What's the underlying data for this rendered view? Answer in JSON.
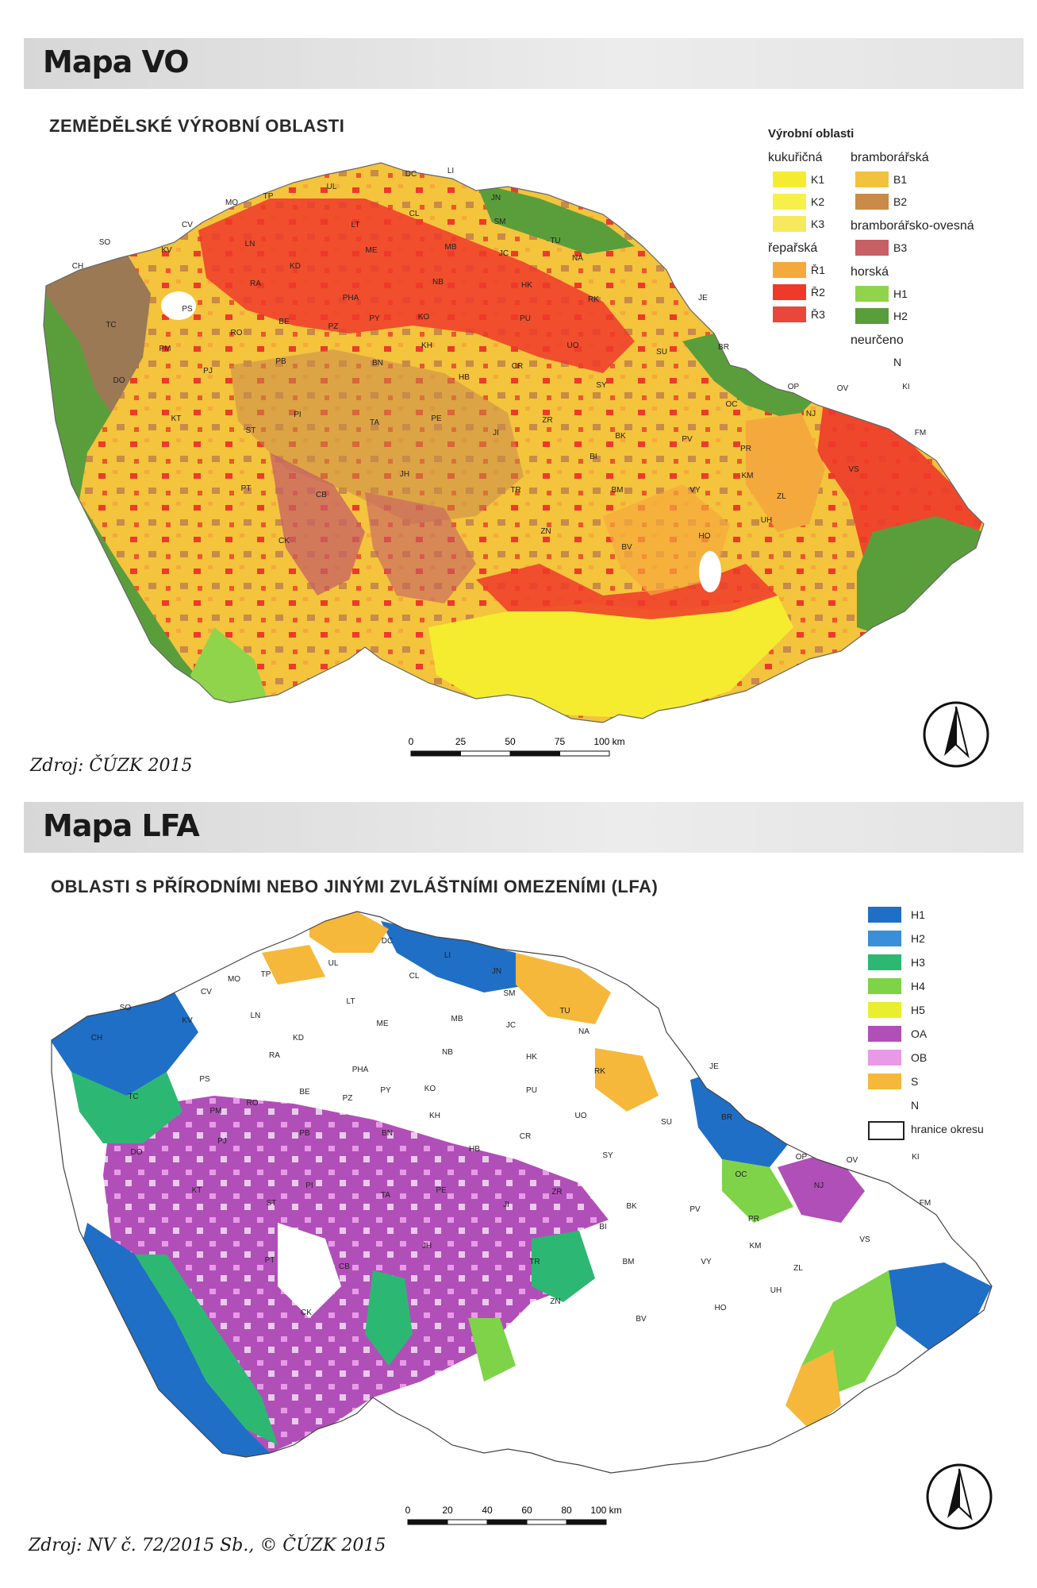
{
  "map_vo": {
    "header": "Mapa VO",
    "title": "ZEMĚDĚLSKÉ VÝROBNÍ OBLASTI",
    "source": "Zdroj: ČÚZK 2015",
    "legend": {
      "heading": "Výrobní oblasti",
      "groups": [
        {
          "name": "kukuřičná",
          "items": [
            {
              "code": "K1",
              "color": "#f5ec2f"
            },
            {
              "code": "K2",
              "color": "#f8f04a"
            },
            {
              "code": "K3",
              "color": "#f6ea5c"
            }
          ]
        },
        {
          "name": "řepařská",
          "items": [
            {
              "code": "Ř1",
              "color": "#f5a93c"
            },
            {
              "code": "Ř2",
              "color": "#ee3a2a"
            },
            {
              "code": "Ř3",
              "color": "#e9473a"
            }
          ]
        },
        {
          "name": "bramborářská",
          "items": [
            {
              "code": "B1",
              "color": "#f2c23e"
            },
            {
              "code": "B2",
              "color": "#c98a4a"
            }
          ]
        },
        {
          "name": "bramborářsko-ovesná",
          "items": [
            {
              "code": "B3",
              "color": "#c76064"
            }
          ]
        },
        {
          "name": "horská",
          "items": [
            {
              "code": "H1",
              "color": "#8fd44a"
            },
            {
              "code": "H2",
              "color": "#5a9e3c"
            }
          ]
        },
        {
          "name": "neurčeno",
          "items": [
            {
              "code": "N",
              "color": "#ffffff"
            }
          ]
        }
      ]
    },
    "scale": {
      "ticks": [
        "0",
        "25",
        "50",
        "75",
        "100 km"
      ]
    },
    "districts": [
      "DC",
      "LI",
      "UL",
      "TP",
      "CL",
      "JN",
      "MO",
      "SM",
      "SO",
      "CV",
      "LT",
      "TU",
      "KV",
      "LN",
      "ME",
      "MB",
      "JC",
      "NA",
      "CH",
      "KD",
      "RA",
      "NB",
      "HK",
      "PS",
      "PHA",
      "RK",
      "BE",
      "PY",
      "KO",
      "PU",
      "TC",
      "RO",
      "PZ",
      "KH",
      "UO",
      "PM",
      "PB",
      "BN",
      "CR",
      "SU",
      "BR",
      "JE",
      "PJ",
      "HB",
      "SY",
      "OP",
      "OV",
      "KI",
      "DO",
      "OC",
      "NJ",
      "PI",
      "PE",
      "ZR",
      "KT",
      "ST",
      "TA",
      "JI",
      "BK",
      "PV",
      "PR",
      "FM",
      "BI",
      "VS",
      "JH",
      "KM",
      "ZL",
      "PT",
      "CB",
      "TR",
      "BM",
      "VY",
      "ZN",
      "UH",
      "CK",
      "BV",
      "HO"
    ]
  },
  "map_lfa": {
    "header": "Mapa LFA",
    "title": "OBLASTI S PŘÍRODNÍMI NEBO JINÝMI ZVLÁŠTNÍMI OMEZENÍMI (LFA)",
    "source": "Zdroj: NV č. 72/2015 Sb., © ČÚZK 2015",
    "legend": [
      {
        "code": "H1",
        "color": "#1f6fc7"
      },
      {
        "code": "H2",
        "color": "#3a8fd8"
      },
      {
        "code": "H3",
        "color": "#2cb873"
      },
      {
        "code": "H4",
        "color": "#7ed348"
      },
      {
        "code": "H5",
        "color": "#e9ef2e"
      },
      {
        "code": "OA",
        "color": "#b14fb8"
      },
      {
        "code": "OB",
        "color": "#e89ae6"
      },
      {
        "code": "S",
        "color": "#f5b83a"
      },
      {
        "code": "N",
        "color": "#ffffff"
      },
      {
        "code": "hranice okresu",
        "color": "#ffffff"
      }
    ],
    "scale": {
      "ticks": [
        "0",
        "20",
        "40",
        "60",
        "80",
        "100 km"
      ]
    }
  }
}
